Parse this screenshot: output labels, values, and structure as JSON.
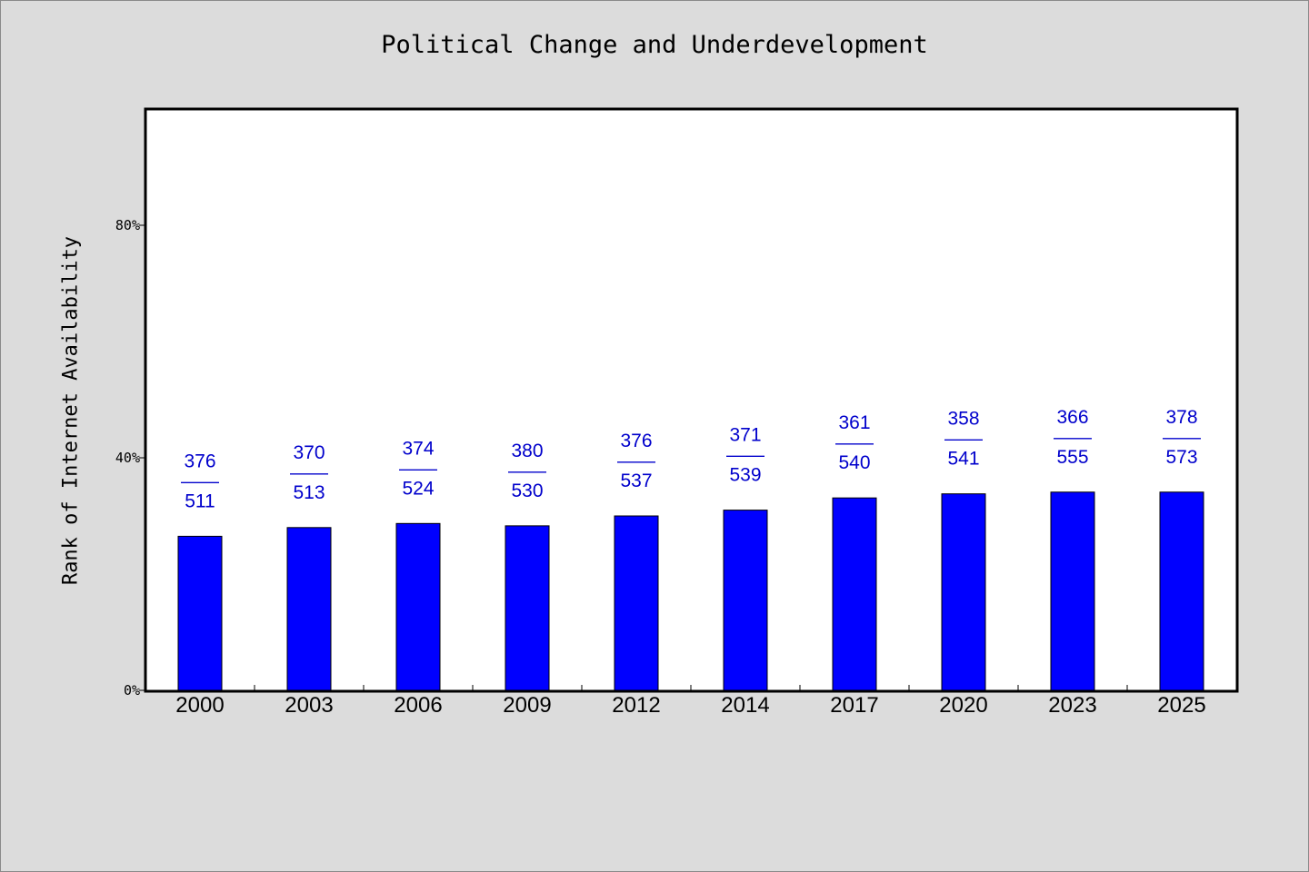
{
  "chart_data": {
    "type": "bar",
    "title": "Political Change and Underdevelopment",
    "ylabel": "Rank of Internet Availability",
    "xlabel": "",
    "ylim": [
      0,
      1.0
    ],
    "yticks": [
      0,
      0.4,
      0.8
    ],
    "ytick_labels": [
      "0%",
      "40%",
      "80%"
    ],
    "categories": [
      "2000",
      "2003",
      "2006",
      "2009",
      "2012",
      "2014",
      "2017",
      "2020",
      "2023",
      "2025"
    ],
    "values": [
      0.265,
      0.28,
      0.287,
      0.283,
      0.3,
      0.31,
      0.331,
      0.338,
      0.341,
      0.341
    ],
    "bar_labels_top": [
      "376",
      "370",
      "374",
      "380",
      "376",
      "371",
      "361",
      "358",
      "366",
      "378"
    ],
    "bar_labels_bottom": [
      "511",
      "513",
      "524",
      "530",
      "537",
      "539",
      "540",
      "541",
      "555",
      "573"
    ],
    "label_separator": "——",
    "bar_color": "#0000ff",
    "label_color": "#0000cc",
    "grid": false
  }
}
